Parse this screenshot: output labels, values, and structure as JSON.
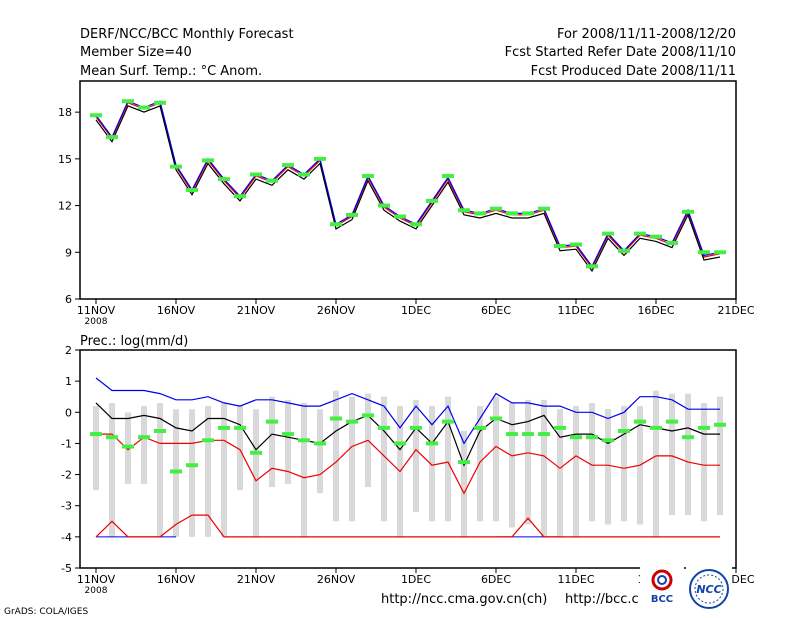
{
  "header": {
    "title": "DERF/NCC/BCC Monthly Forecast",
    "member": "Member Size=40",
    "variable": "Mean Surf. Temp.: °C Anom.",
    "period": "For 2008/11/11-2008/12/20",
    "started": "Fcst Started Refer Date 2008/11/10",
    "produced": "Fcst Produced Date 2008/11/11"
  },
  "footer": {
    "grads": "GrADS: COLA/IGES",
    "url1": "http://ncc.cma.gov.cn(ch)",
    "url2": "http://bcc.c",
    "logo_bcc": "BCC",
    "logo_ncc": "NCC"
  },
  "colors": {
    "blue": "#0000ee",
    "red": "#ee0000",
    "black": "#000000",
    "green": "#44ee44",
    "bar": "#d9d9d9"
  },
  "chart_data": [
    {
      "type": "line",
      "title": "Mean Surf. Temp.: °C Anom.",
      "xlabel": "",
      "ylabel": "",
      "ylim": [
        6,
        20
      ],
      "yticks": [
        6,
        9,
        12,
        15,
        18
      ],
      "xticks": [
        {
          "day": 1,
          "label": "11NOV",
          "sub": "2008"
        },
        {
          "day": 6,
          "label": "16NOV"
        },
        {
          "day": 11,
          "label": "21NOV"
        },
        {
          "day": 16,
          "label": "26NOV"
        },
        {
          "day": 21,
          "label": "1DEC"
        },
        {
          "day": 26,
          "label": "6DEC"
        },
        {
          "day": 31,
          "label": "11DEC"
        },
        {
          "day": 36,
          "label": "16DEC"
        },
        {
          "day": 41,
          "label": "21DEC"
        }
      ],
      "days": [
        1,
        2,
        3,
        4,
        5,
        6,
        7,
        8,
        9,
        10,
        11,
        12,
        13,
        14,
        15,
        16,
        17,
        18,
        19,
        20,
        21,
        22,
        23,
        24,
        25,
        26,
        27,
        28,
        29,
        30,
        31,
        32,
        33,
        34,
        35,
        36,
        37,
        38,
        39,
        40
      ],
      "series": [
        {
          "name": "ensemble-mean",
          "color": "#ee0000",
          "values": [
            17.7,
            16.3,
            18.6,
            18.2,
            18.6,
            14.5,
            12.9,
            14.9,
            13.6,
            12.5,
            13.9,
            13.5,
            14.5,
            13.9,
            14.9,
            10.7,
            11.3,
            13.8,
            11.9,
            11.2,
            10.7,
            12.2,
            13.7,
            11.6,
            11.4,
            11.7,
            11.4,
            11.4,
            11.7,
            9.3,
            9.4,
            8.0,
            10.1,
            9.0,
            10.1,
            9.9,
            9.5,
            11.6,
            8.7,
            8.9
          ]
        },
        {
          "name": "ensemble-upper",
          "color": "#0000ee",
          "values": [
            17.8,
            16.4,
            18.7,
            18.3,
            18.7,
            14.6,
            13.0,
            15.0,
            13.7,
            12.6,
            14.0,
            13.6,
            14.6,
            14.0,
            15.0,
            10.8,
            11.4,
            13.9,
            12.0,
            11.3,
            10.8,
            12.3,
            13.8,
            11.7,
            11.5,
            11.8,
            11.5,
            11.5,
            11.8,
            9.4,
            9.5,
            8.1,
            10.2,
            9.1,
            10.2,
            10.0,
            9.6,
            11.7,
            8.8,
            9.0
          ]
        },
        {
          "name": "ensemble-lower",
          "color": "#000000",
          "values": [
            17.5,
            16.1,
            18.4,
            18.0,
            18.4,
            14.3,
            12.7,
            14.7,
            13.4,
            12.3,
            13.7,
            13.3,
            14.3,
            13.7,
            14.7,
            10.5,
            11.1,
            13.6,
            11.7,
            11.0,
            10.5,
            12.0,
            13.5,
            11.4,
            11.2,
            11.5,
            11.2,
            11.2,
            11.5,
            9.1,
            9.2,
            7.8,
            9.9,
            8.8,
            9.9,
            9.7,
            9.3,
            11.4,
            8.5,
            8.7
          ]
        }
      ],
      "markers": {
        "name": "observation",
        "color": "#44ee44",
        "values": [
          17.8,
          16.4,
          18.7,
          18.3,
          18.6,
          14.5,
          13.0,
          14.9,
          13.7,
          12.6,
          14.0,
          13.6,
          14.6,
          14.0,
          15.0,
          10.8,
          11.4,
          13.9,
          12.0,
          11.3,
          10.8,
          12.3,
          13.9,
          11.7,
          11.5,
          11.8,
          11.5,
          11.5,
          11.8,
          9.4,
          9.5,
          8.1,
          10.2,
          9.1,
          10.2,
          10.0,
          9.6,
          11.6,
          9.0,
          9.0
        ]
      }
    },
    {
      "type": "line",
      "title": "Prec.: log(mm/d)",
      "xlabel": "",
      "ylabel": "",
      "ylim": [
        -5,
        2
      ],
      "yticks": [
        -5,
        -4,
        -3,
        -2,
        -1,
        0,
        1,
        2
      ],
      "xticks": [
        {
          "day": 1,
          "label": "11NOV",
          "sub": "2008"
        },
        {
          "day": 6,
          "label": "16NOV"
        },
        {
          "day": 11,
          "label": "21NOV"
        },
        {
          "day": 16,
          "label": "26NOV"
        },
        {
          "day": 21,
          "label": "1DEC"
        },
        {
          "day": 26,
          "label": "6DEC"
        },
        {
          "day": 31,
          "label": "11DEC"
        },
        {
          "day": 36,
          "label": "16DEC"
        },
        {
          "day": 41,
          "label": "21DEC"
        }
      ],
      "days": [
        1,
        2,
        3,
        4,
        5,
        6,
        7,
        8,
        9,
        10,
        11,
        12,
        13,
        14,
        15,
        16,
        17,
        18,
        19,
        20,
        21,
        22,
        23,
        24,
        25,
        26,
        27,
        28,
        29,
        30,
        31,
        32,
        33,
        34,
        35,
        36,
        37,
        38,
        39,
        40
      ],
      "bars_low": [
        -2.5,
        -4.0,
        -2.3,
        -2.3,
        -4.0,
        -4.0,
        -4.0,
        -4.0,
        -4.0,
        -2.5,
        -4.0,
        -2.4,
        -2.3,
        -4.0,
        -2.6,
        -3.5,
        -3.5,
        -2.4,
        -3.5,
        -4.0,
        -3.2,
        -3.5,
        -3.5,
        -4.0,
        -3.5,
        -3.5,
        -3.7,
        -3.6,
        -4.0,
        -4.0,
        -4.0,
        -3.5,
        -3.6,
        -3.5,
        -3.6,
        -4.0,
        -3.3,
        -3.3,
        -3.5,
        -3.3
      ],
      "bars_high": [
        0.2,
        0.3,
        0.0,
        0.2,
        0.3,
        0.1,
        0.1,
        0.2,
        0.3,
        0.2,
        0.1,
        0.5,
        0.4,
        0.3,
        0.1,
        0.7,
        0.5,
        0.6,
        0.5,
        0.2,
        0.4,
        0.2,
        0.5,
        -0.6,
        0.2,
        0.5,
        0.3,
        0.4,
        0.4,
        0.1,
        0.2,
        0.3,
        0.1,
        0.2,
        0.2,
        0.7,
        0.6,
        0.6,
        0.3,
        0.5
      ],
      "series": [
        {
          "name": "upper",
          "color": "#0000ee",
          "values": [
            1.1,
            0.7,
            0.7,
            0.7,
            0.6,
            0.4,
            0.4,
            0.5,
            0.3,
            0.2,
            0.4,
            0.4,
            0.3,
            0.2,
            0.2,
            0.4,
            0.6,
            0.4,
            0.2,
            -0.5,
            0.2,
            -0.4,
            0.2,
            -1.0,
            -0.2,
            0.6,
            0.3,
            0.3,
            0.2,
            0.2,
            0.0,
            0.0,
            -0.2,
            0.0,
            0.5,
            0.5,
            0.4,
            0.1,
            0.1,
            0.1
          ]
        },
        {
          "name": "median",
          "color": "#000000",
          "values": [
            0.3,
            -0.2,
            -0.2,
            -0.1,
            -0.2,
            -0.5,
            -0.6,
            -0.2,
            -0.2,
            -0.4,
            -1.2,
            -0.7,
            -0.8,
            -0.9,
            -1.0,
            -0.6,
            -0.3,
            -0.1,
            -0.6,
            -1.2,
            -0.5,
            -1.0,
            -0.3,
            -1.7,
            -0.6,
            -0.2,
            -0.4,
            -0.3,
            -0.1,
            -0.8,
            -0.7,
            -0.7,
            -1.0,
            -0.7,
            -0.4,
            -0.5,
            -0.6,
            -0.5,
            -0.7,
            -0.7
          ]
        },
        {
          "name": "lower",
          "color": "#ee0000",
          "values": [
            -0.7,
            -0.7,
            -1.2,
            -0.8,
            -1.0,
            -1.0,
            -1.0,
            -0.9,
            -0.9,
            -1.2,
            -2.2,
            -1.8,
            -1.9,
            -2.1,
            -2.0,
            -1.6,
            -1.1,
            -0.9,
            -1.4,
            -1.9,
            -1.2,
            -1.7,
            -1.6,
            -2.6,
            -1.6,
            -1.1,
            -1.4,
            -1.3,
            -1.4,
            -1.8,
            -1.4,
            -1.7,
            -1.7,
            -1.8,
            -1.7,
            -1.4,
            -1.4,
            -1.6,
            -1.7,
            -1.7
          ]
        },
        {
          "name": "minimum",
          "color": "#ee0000",
          "values": [
            -4.0,
            -3.5,
            -4.0,
            -4.0,
            -4.0,
            -3.6,
            -3.3,
            -3.3,
            -4.0,
            -4.0,
            -4.0,
            -4.0,
            -4.0,
            -4.0,
            -4.0,
            -4.0,
            -4.0,
            -4.0,
            -4.0,
            -4.0,
            -4.0,
            -4.0,
            -4.0,
            -4.0,
            -4.0,
            -4.0,
            -4.0,
            -3.4,
            -4.0,
            -4.0,
            -4.0,
            -4.0,
            -4.0,
            -4.0,
            -4.0,
            -4.0,
            -4.0,
            -4.0,
            -4.0,
            -4.0
          ]
        }
      ],
      "baseline": {
        "value": -4.0,
        "color": "#0000ee",
        "segments": [
          [
            1,
            6
          ],
          [
            26,
            30
          ]
        ]
      },
      "markers": {
        "name": "observation",
        "color": "#44ee44",
        "values": [
          -0.7,
          -0.8,
          -1.1,
          -0.8,
          -0.6,
          -1.9,
          -1.7,
          -0.9,
          -0.5,
          -0.5,
          -1.3,
          -0.3,
          -0.7,
          -0.9,
          -1.0,
          -0.2,
          -0.3,
          -0.1,
          -0.5,
          -1.0,
          -0.5,
          -1.0,
          -0.3,
          -1.6,
          -0.5,
          -0.2,
          -0.7,
          -0.7,
          -0.7,
          -0.5,
          -0.8,
          -0.8,
          -0.9,
          -0.6,
          -0.3,
          -0.5,
          -0.3,
          -0.8,
          -0.5,
          -0.4
        ]
      }
    }
  ]
}
